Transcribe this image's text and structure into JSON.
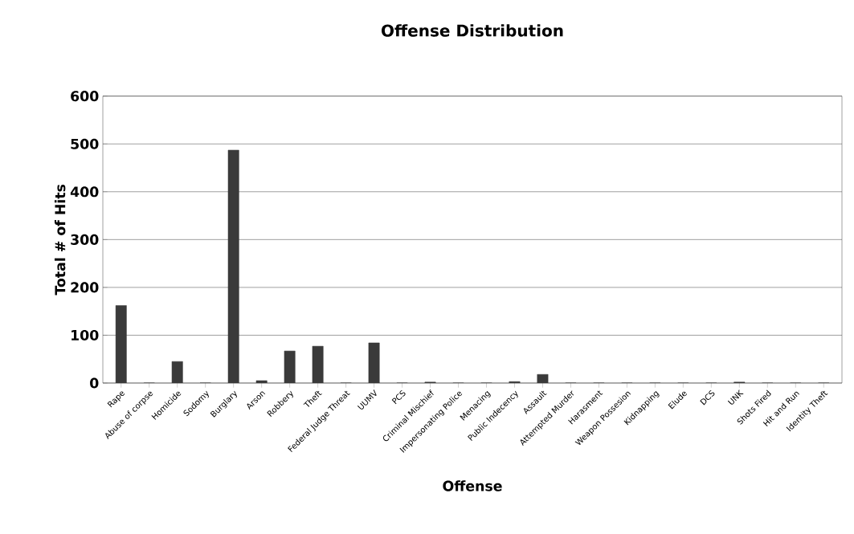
{
  "chart_data": {
    "type": "bar",
    "title": "Offense Distribution",
    "xlabel": "Offense",
    "ylabel": "Total # of Hits",
    "categories": [
      "Rape",
      "Abuse of corpse",
      "Homicide",
      "Sodomy",
      "Burglary",
      "Arson",
      "Robbery",
      "Theft",
      "Federal Judge Threat",
      "UUMV",
      "PCS",
      "Criminal Mischief",
      "Impersonating Police",
      "Menacing",
      "Public Indecency",
      "Assault",
      "Attempted Murder",
      "Harasment",
      "Weapon Possesion",
      "Kidnapping",
      "Elude",
      "DCS",
      "UNK",
      "Shots Fired",
      "Hit and Run",
      "Identity Theft"
    ],
    "values": [
      162,
      0,
      45,
      0,
      487,
      5,
      67,
      77,
      0,
      84,
      0,
      2,
      0,
      0,
      3,
      18,
      0,
      0,
      0,
      0,
      0,
      0,
      2,
      0,
      0,
      0
    ],
    "color": "#3a3a3a",
    "ylim": [
      0,
      600
    ],
    "yticks": [
      0,
      100,
      200,
      300,
      400,
      500,
      600
    ],
    "grid": "y"
  }
}
